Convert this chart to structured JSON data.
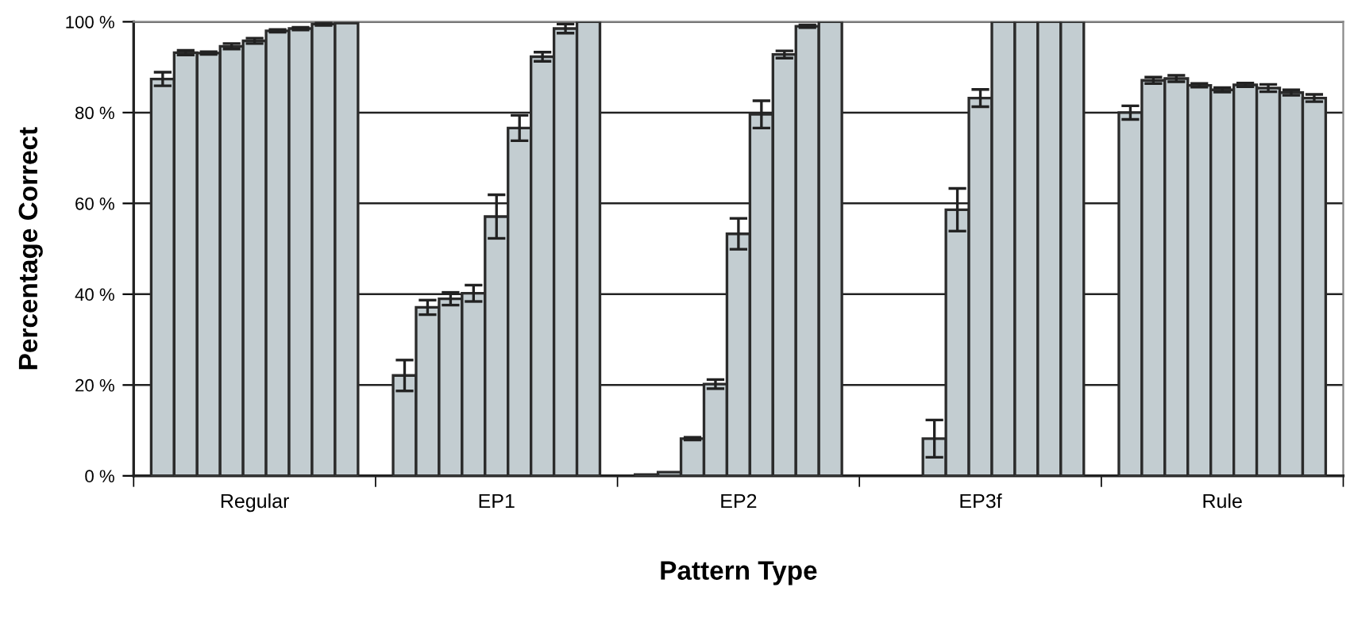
{
  "chart_data": {
    "type": "bar",
    "xlabel": "Pattern Type",
    "ylabel": "Percentage Correct",
    "categories": [
      "Regular",
      "EP1",
      "EP2",
      "EP3f",
      "Rule"
    ],
    "series": [
      {
        "color": "#c3cdd1",
        "values": [
          87.4,
          22.1,
          0.3,
          null,
          80
        ],
        "errors": [
          1.5,
          3.4,
          null,
          null,
          1.5
        ]
      },
      {
        "color": "#c3cdd1",
        "values": [
          93.2,
          37.1,
          0.8,
          null,
          87.1
        ],
        "errors": [
          0.5,
          1.6,
          null,
          null,
          0.7
        ]
      },
      {
        "color": "#c3cdd1",
        "values": [
          93.1,
          39,
          8.2,
          8.2,
          87.5
        ],
        "errors": [
          0.3,
          1.4,
          0.3,
          4.1,
          0.7
        ]
      },
      {
        "color": "#c3cdd1",
        "values": [
          94.6,
          40.2,
          20.2,
          58.6,
          86
        ],
        "errors": [
          0.6,
          1.8,
          1,
          4.7,
          0.4
        ]
      },
      {
        "color": "#c3cdd1",
        "values": [
          95.8,
          57.1,
          53.3,
          83.2,
          85
        ],
        "errors": [
          0.6,
          4.8,
          3.4,
          1.9,
          0.5
        ]
      },
      {
        "color": "#c3cdd1",
        "values": [
          98,
          76.6,
          79.6,
          100,
          86.1
        ],
        "errors": [
          0.3,
          2.8,
          3,
          null,
          0.4
        ]
      },
      {
        "color": "#c3cdd1",
        "values": [
          98.5,
          92.3,
          92.8,
          100,
          85.4
        ],
        "errors": [
          0.3,
          1,
          0.8,
          null,
          0.8
        ]
      },
      {
        "color": "#c3cdd1",
        "values": [
          99.5,
          98.5,
          99,
          100,
          84.4
        ],
        "errors": [
          0.3,
          1,
          0.3,
          null,
          0.6
        ]
      },
      {
        "color": "#c3cdd1",
        "values": [
          99.7,
          100,
          100,
          100,
          83.2
        ],
        "errors": [
          null,
          null,
          null,
          null,
          0.8
        ]
      }
    ],
    "ylim": [
      0,
      100
    ],
    "yticks": [
      {
        "value": 0,
        "label": "0 %"
      },
      {
        "value": 20,
        "label": "20 %"
      },
      {
        "value": 40,
        "label": "40 %"
      },
      {
        "value": 60,
        "label": "60 %"
      },
      {
        "value": 80,
        "label": "80 %"
      },
      {
        "value": 100,
        "label": "100 %"
      }
    ],
    "grid": "y",
    "legend": false
  }
}
